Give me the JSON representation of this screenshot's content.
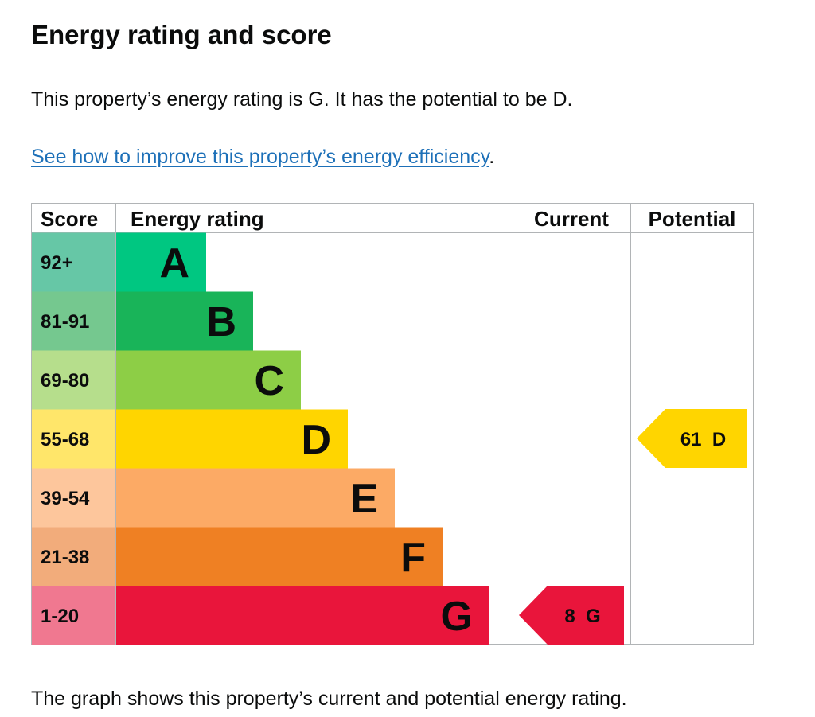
{
  "heading": "Energy rating and score",
  "summary": "This property’s energy rating is G. It has the potential to be D.",
  "improve_link": "See how to improve this property’s energy efficiency",
  "improve_link_suffix": ".",
  "footer": "The graph shows this property’s current and potential energy rating.",
  "chart_data": {
    "type": "bar",
    "columns": {
      "score": "Score",
      "rating": "Energy rating",
      "current": "Current",
      "potential": "Potential"
    },
    "bands": [
      {
        "letter": "A",
        "range": "92+",
        "color": "#00c781",
        "score_bg": "#66c7a6"
      },
      {
        "letter": "B",
        "range": "81-91",
        "color": "#19b459",
        "score_bg": "#75c88f"
      },
      {
        "letter": "C",
        "range": "69-80",
        "color": "#8dce46",
        "score_bg": "#b6de8c"
      },
      {
        "letter": "D",
        "range": "55-68",
        "color": "#ffd500",
        "score_bg": "#ffe66a"
      },
      {
        "letter": "E",
        "range": "39-54",
        "color": "#fcaa65",
        "score_bg": "#fdc69c"
      },
      {
        "letter": "F",
        "range": "21-38",
        "color": "#ef8023",
        "score_bg": "#f2ac7b"
      },
      {
        "letter": "G",
        "range": "1-20",
        "color": "#e9153b",
        "score_bg": "#f07890"
      }
    ],
    "current": {
      "score": 8,
      "band": "G",
      "label": "8  G",
      "color": "#e9153b"
    },
    "potential": {
      "score": 61,
      "band": "D",
      "label": "61  D",
      "color": "#ffd500"
    }
  }
}
